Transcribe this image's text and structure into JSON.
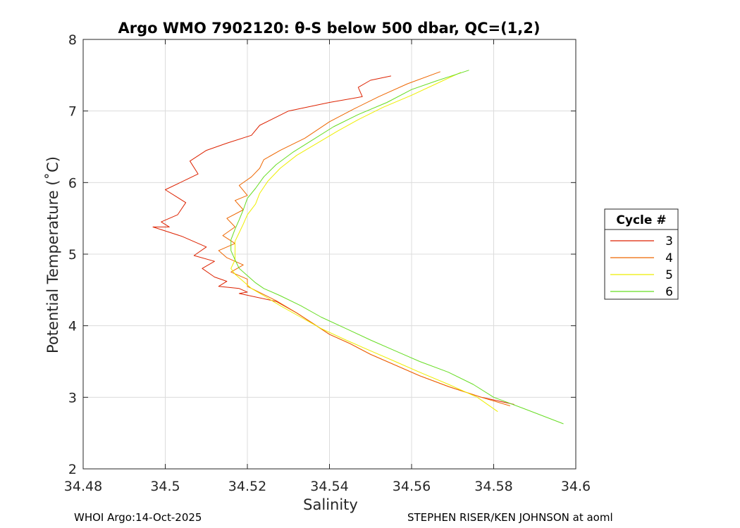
{
  "chart_data": {
    "type": "line",
    "title": "Argo WMO 7902120: θ-S below 500 dbar,  QC=(1,2)",
    "xlabel": "Salinity",
    "ylabel": "Potential Temperature (˚C)",
    "xlim": [
      34.48,
      34.6
    ],
    "ylim": [
      2,
      8
    ],
    "xticks": [
      "34.48",
      "34.5",
      "34.52",
      "34.54",
      "34.56",
      "34.58",
      "34.6"
    ],
    "yticks": [
      "2",
      "3",
      "4",
      "5",
      "6",
      "7",
      "8"
    ],
    "grid": true,
    "legend": {
      "title": "Cycle #",
      "placement": "outside-right"
    },
    "series": [
      {
        "name": "3",
        "color": "#dd2200",
        "x": [
          34.555,
          34.55,
          34.547,
          34.548,
          34.54,
          34.53,
          34.523,
          34.521,
          34.515,
          34.51,
          34.506,
          34.508,
          34.5,
          34.505,
          34.503,
          34.499,
          34.501,
          34.497,
          34.504,
          34.51,
          34.507,
          34.512,
          34.509,
          34.512,
          34.515,
          34.513,
          34.518,
          34.52,
          34.518,
          34.527,
          34.532,
          34.536,
          34.54,
          34.545,
          34.55,
          34.556,
          34.562,
          34.569,
          34.577,
          34.585
        ],
        "y": [
          7.49,
          7.43,
          7.33,
          7.2,
          7.12,
          7.0,
          6.8,
          6.66,
          6.55,
          6.45,
          6.3,
          6.12,
          5.9,
          5.72,
          5.55,
          5.45,
          5.38,
          5.38,
          5.25,
          5.1,
          4.98,
          4.9,
          4.8,
          4.68,
          4.62,
          4.55,
          4.52,
          4.47,
          4.45,
          4.34,
          4.18,
          4.03,
          3.88,
          3.75,
          3.6,
          3.45,
          3.3,
          3.15,
          3.0,
          2.9
        ]
      },
      {
        "name": "4",
        "color": "#ee6600",
        "x": [
          34.567,
          34.559,
          34.552,
          34.546,
          34.54,
          34.534,
          34.528,
          34.524,
          34.523,
          34.521,
          34.518,
          34.52,
          34.517,
          34.519,
          34.515,
          34.517,
          34.514,
          34.517,
          34.513,
          34.515,
          34.519,
          34.516,
          34.52,
          34.52,
          34.527,
          34.532,
          34.536,
          34.54,
          34.545,
          34.55,
          34.556,
          34.562,
          34.569,
          34.577,
          34.584
        ],
        "y": [
          7.55,
          7.38,
          7.2,
          7.03,
          6.85,
          6.62,
          6.45,
          6.32,
          6.2,
          6.08,
          5.96,
          5.82,
          5.75,
          5.62,
          5.5,
          5.38,
          5.26,
          5.15,
          5.05,
          4.95,
          4.85,
          4.75,
          4.65,
          4.55,
          4.35,
          4.18,
          4.03,
          3.88,
          3.75,
          3.6,
          3.45,
          3.3,
          3.15,
          3.0,
          2.88
        ]
      },
      {
        "name": "5",
        "color": "#eeee00",
        "x": [
          34.572,
          34.566,
          34.56,
          34.553,
          34.547,
          34.542,
          34.537,
          34.532,
          34.528,
          34.525,
          34.523,
          34.522,
          34.52,
          34.519,
          34.518,
          34.517,
          34.517,
          34.517,
          34.516,
          34.517,
          34.519,
          34.521,
          34.524,
          34.528,
          34.533,
          34.538,
          34.544,
          34.55,
          34.556,
          34.562,
          34.569,
          34.576,
          34.581
        ],
        "y": [
          7.54,
          7.38,
          7.22,
          7.05,
          6.88,
          6.72,
          6.55,
          6.38,
          6.2,
          6.02,
          5.85,
          5.7,
          5.55,
          5.42,
          5.3,
          5.18,
          5.05,
          4.92,
          4.8,
          4.72,
          4.62,
          4.52,
          4.42,
          4.28,
          4.12,
          3.96,
          3.8,
          3.65,
          3.5,
          3.35,
          3.18,
          3.0,
          2.8
        ]
      },
      {
        "name": "6",
        "color": "#66dd22",
        "x": [
          34.574,
          34.566,
          34.56,
          34.554,
          34.547,
          34.541,
          34.536,
          34.531,
          34.527,
          34.524,
          34.522,
          34.52,
          34.519,
          34.518,
          34.517,
          34.516,
          34.516,
          34.517,
          34.518,
          34.52,
          34.522,
          34.524,
          34.528,
          34.533,
          34.538,
          34.544,
          34.55,
          34.556,
          34.562,
          34.569,
          34.575,
          34.58,
          34.587,
          34.597
        ],
        "y": [
          7.57,
          7.42,
          7.3,
          7.12,
          6.95,
          6.78,
          6.6,
          6.42,
          6.25,
          6.08,
          5.92,
          5.78,
          5.62,
          5.48,
          5.35,
          5.2,
          5.05,
          4.92,
          4.8,
          4.7,
          4.6,
          4.52,
          4.42,
          4.28,
          4.12,
          3.96,
          3.8,
          3.65,
          3.5,
          3.35,
          3.18,
          3.0,
          2.85,
          2.63
        ]
      }
    ]
  },
  "footer": {
    "left": "WHOI Argo:14-Oct-2025",
    "right": "STEPHEN RISER/KEN JOHNSON at aoml"
  }
}
